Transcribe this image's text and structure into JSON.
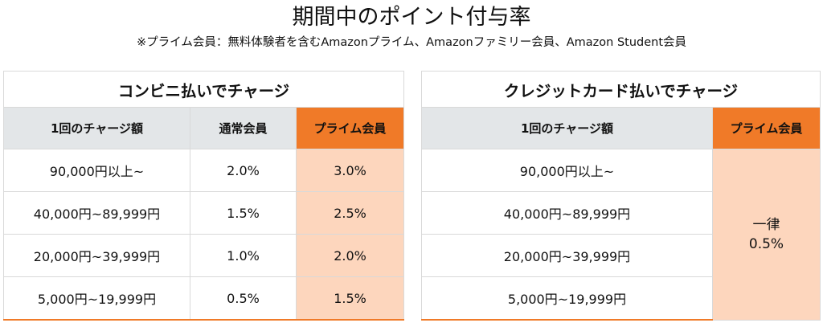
{
  "title": "期間中のポイント付与率",
  "subtitle": "※プライム会員：無料体験者を含むAmazonプライム、Amazonファミリー会員、Amazon Student会員",
  "convenience_table": {
    "caption": "コンビニ払いでチャージ",
    "headers": [
      "1回のチャージ額",
      "通常会員",
      "プライム会員"
    ],
    "rows": [
      {
        "amount": "90,000円以上~",
        "regular": "2.0%",
        "prime": "3.0%"
      },
      {
        "amount": "40,000円~89,999円",
        "regular": "1.5%",
        "prime": "2.5%"
      },
      {
        "amount": "20,000円~39,999円",
        "regular": "1.0%",
        "prime": "2.0%"
      },
      {
        "amount": "5,000円~19,999円",
        "regular": "0.5%",
        "prime": "1.5%"
      }
    ]
  },
  "credit_table": {
    "caption": "クレジットカード払いでチャージ",
    "headers": [
      "1回のチャージ額",
      "プライム会員"
    ],
    "rows": [
      {
        "amount": "90,000円以上~"
      },
      {
        "amount": "40,000円~89,999円"
      },
      {
        "amount": "20,000円~39,999円"
      },
      {
        "amount": "5,000円~19,999円"
      }
    ],
    "prime_rate_line1": "一律",
    "prime_rate_line2": "0.5%"
  },
  "colors": {
    "prime_header": "#f07a28",
    "prime_cell": "#fdd6bd",
    "header_gray": "#e3e6e8"
  }
}
